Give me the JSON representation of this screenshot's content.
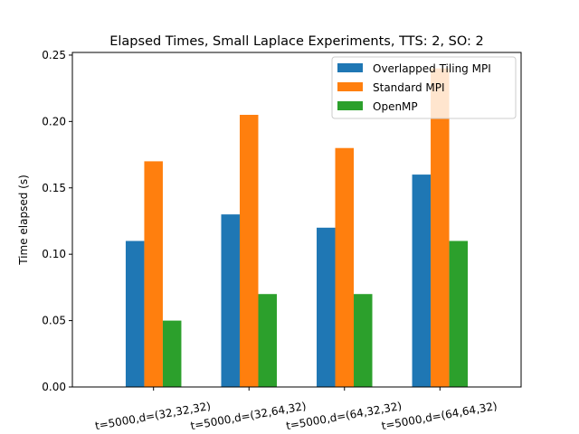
{
  "chart_data": {
    "type": "bar",
    "title": "Elapsed Times, Small Laplace Experiments, TTS: 2, SO: 2",
    "xlabel": "",
    "ylabel": "Time elapsed (s)",
    "categories": [
      "t=5000,d=(32,32,32)",
      "t=5000,d=(32,64,32)",
      "t=5000,d=(64,32,32)",
      "t=5000,d=(64,64,32)"
    ],
    "series": [
      {
        "name": "Overlapped Tiling MPI",
        "color": "#1f77b4",
        "values": [
          0.11,
          0.13,
          0.12,
          0.16
        ]
      },
      {
        "name": "Standard MPI",
        "color": "#ff7f0e",
        "values": [
          0.17,
          0.205,
          0.18,
          0.24
        ]
      },
      {
        "name": "OpenMP",
        "color": "#2ca02c",
        "values": [
          0.05,
          0.07,
          0.07,
          0.11
        ]
      }
    ],
    "ylim": [
      0,
      0.252
    ],
    "yticks": [
      "0.00",
      "0.05",
      "0.10",
      "0.15",
      "0.20",
      "0.25"
    ],
    "ytick_values": [
      0,
      0.05,
      0.1,
      0.15,
      0.2,
      0.25
    ],
    "grid": false,
    "legend_position": "top-right"
  }
}
